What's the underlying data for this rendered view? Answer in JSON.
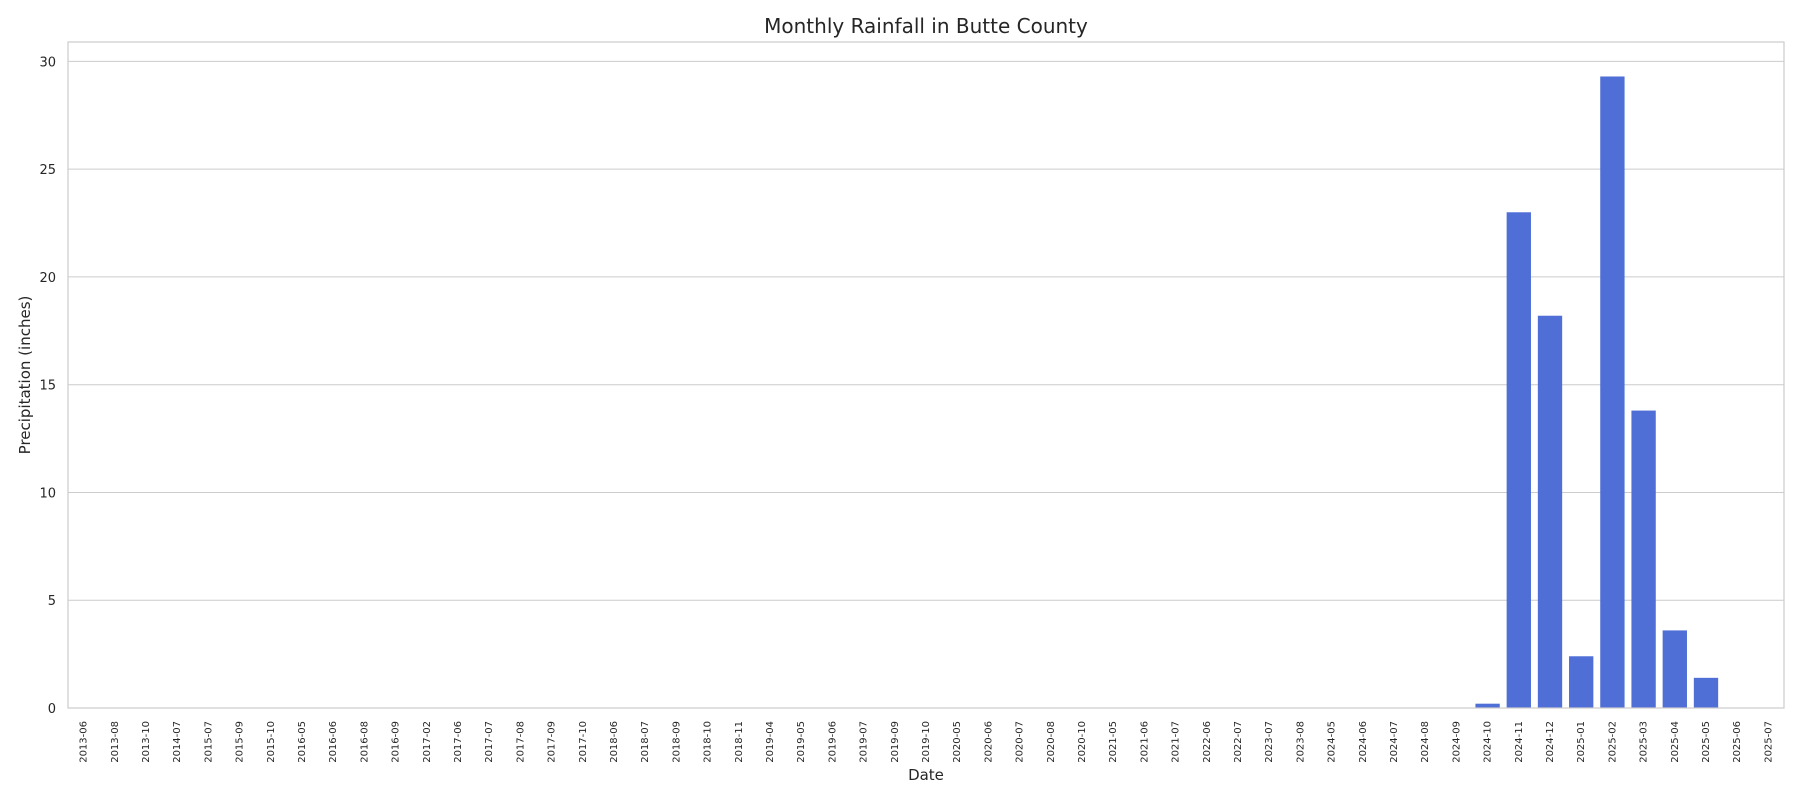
{
  "chart_data": {
    "type": "bar",
    "title": "Monthly Rainfall in Butte County",
    "xlabel": "Date",
    "ylabel": "Precipitation (inches)",
    "ylim": [
      0,
      30.9
    ],
    "yticks": [
      0,
      5,
      10,
      15,
      20,
      25,
      30
    ],
    "grid": true,
    "bar_color": "#4f6fd6",
    "categories": [
      "2013-06",
      "2013-08",
      "2013-10",
      "2014-07",
      "2015-07",
      "2015-09",
      "2015-10",
      "2016-05",
      "2016-06",
      "2016-08",
      "2016-09",
      "2017-02",
      "2017-06",
      "2017-07",
      "2017-08",
      "2017-09",
      "2017-10",
      "2018-06",
      "2018-07",
      "2018-09",
      "2018-10",
      "2018-11",
      "2019-04",
      "2019-05",
      "2019-06",
      "2019-07",
      "2019-09",
      "2019-10",
      "2020-05",
      "2020-06",
      "2020-07",
      "2020-08",
      "2020-10",
      "2021-05",
      "2021-06",
      "2021-07",
      "2022-06",
      "2022-07",
      "2023-07",
      "2023-08",
      "2024-05",
      "2024-06",
      "2024-07",
      "2024-08",
      "2024-09",
      "2024-10",
      "2024-11",
      "2024-12",
      "2025-01",
      "2025-02",
      "2025-03",
      "2025-04",
      "2025-05",
      "2025-06",
      "2025-07"
    ],
    "values": [
      0,
      0,
      0,
      0,
      0,
      0,
      0,
      0,
      0,
      0,
      0,
      0,
      0,
      0,
      0,
      0,
      0,
      0,
      0,
      0,
      0,
      0,
      0,
      0,
      0,
      0,
      0,
      0,
      0,
      0,
      0,
      0,
      0,
      0,
      0,
      0,
      0,
      0,
      0,
      0,
      0,
      0,
      0,
      0,
      0,
      0.2,
      23.0,
      18.2,
      2.4,
      29.3,
      13.8,
      3.6,
      1.4,
      0,
      0
    ]
  }
}
